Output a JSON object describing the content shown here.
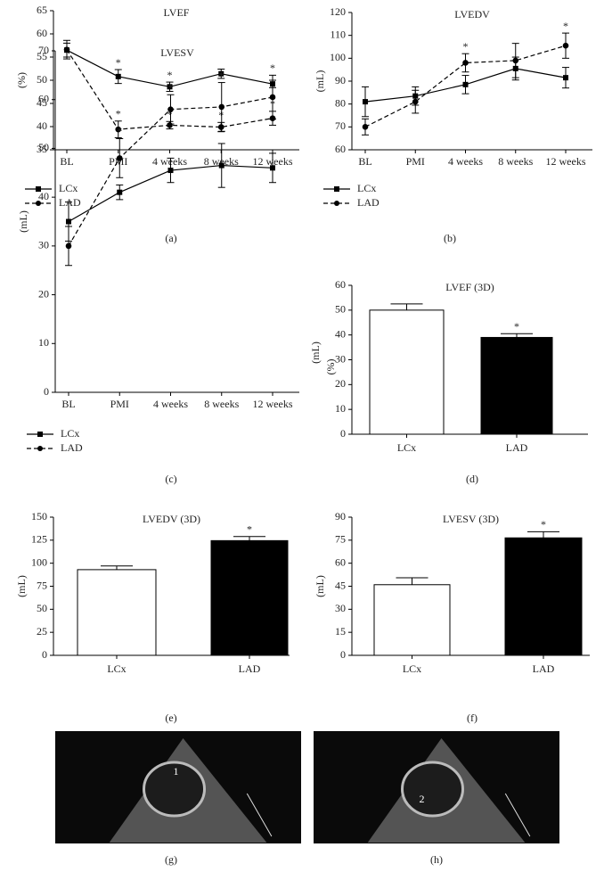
{
  "chart_data": [
    {
      "type": "line",
      "title": "LVEF",
      "panel": "(a)",
      "y_label": "(%)",
      "categories": [
        "BL",
        "PMI",
        "4 weeks",
        "8 weeks",
        "12 weeks"
      ],
      "ylim": [
        35,
        65
      ],
      "yticks": [
        35,
        40,
        45,
        50,
        55,
        60,
        65
      ],
      "series": [
        {
          "name": "LCx",
          "color": "#000000",
          "style": "solid",
          "marker": "square",
          "values": [
            56.5,
            50.8,
            48.6,
            51.4,
            49.2
          ],
          "errors": [
            1.5,
            1.5,
            1,
            1,
            0.8
          ],
          "significance": [
            null,
            "*",
            "*",
            null,
            null
          ]
        },
        {
          "name": "LAD",
          "color": "#000000",
          "style": "dashed",
          "marker": "circle",
          "values": [
            56.6,
            39.4,
            40.3,
            39.9,
            41.8
          ],
          "errors": [
            2,
            1.8,
            0.8,
            1,
            1.5
          ],
          "significance": [
            null,
            "*",
            "*",
            "*",
            "*"
          ]
        }
      ]
    },
    {
      "type": "line",
      "title": "LVEDV",
      "panel": "(b)",
      "y_label": "(mL)",
      "categories": [
        "BL",
        "PMI",
        "4 weeks",
        "8 weeks",
        "12 weeks"
      ],
      "ylim": [
        60,
        120
      ],
      "yticks": [
        60,
        70,
        80,
        90,
        100,
        110,
        120
      ],
      "series": [
        {
          "name": "LCx",
          "color": "#000000",
          "style": "solid",
          "marker": "square",
          "values": [
            81,
            83.5,
            88.5,
            95.5,
            91.5
          ],
          "errors": [
            6.5,
            4,
            4,
            5,
            4.5
          ],
          "significance": [
            null,
            null,
            null,
            null,
            null
          ]
        },
        {
          "name": "LAD",
          "color": "#000000",
          "style": "dashed",
          "marker": "circle",
          "values": [
            70,
            81,
            98,
            99,
            105.5
          ],
          "errors": [
            3.5,
            5,
            4,
            7.5,
            5.5
          ],
          "significance": [
            null,
            null,
            "*",
            null,
            "*"
          ]
        }
      ]
    },
    {
      "type": "line",
      "title": "LVESV",
      "panel": "(c)",
      "y_label": "(mL)",
      "categories": [
        "BL",
        "PMI",
        "4 weeks",
        "8 weeks",
        "12 weeks"
      ],
      "ylim": [
        0,
        70
      ],
      "yticks": [
        0,
        10,
        20,
        30,
        40,
        50,
        60,
        70
      ],
      "series": [
        {
          "name": "LCx",
          "color": "#000000",
          "style": "solid",
          "marker": "square",
          "values": [
            35,
            41,
            45.5,
            46.5,
            46
          ],
          "errors": [
            4,
            1.5,
            2.5,
            4.5,
            3
          ],
          "significance": [
            null,
            null,
            null,
            null,
            null
          ]
        },
        {
          "name": "LAD",
          "color": "#000000",
          "style": "dashed",
          "marker": "circle",
          "values": [
            30,
            48,
            58,
            58.5,
            60.5
          ],
          "errors": [
            4,
            4,
            3,
            5,
            4.5
          ],
          "significance": [
            null,
            "*",
            "*",
            "*",
            "*"
          ]
        }
      ]
    },
    {
      "type": "bar",
      "title": "LVEF (3D)",
      "panel": "(d)",
      "y_label": [
        "(mL)",
        "(%)"
      ],
      "categories": [
        "LCx",
        "LAD"
      ],
      "values": [
        50,
        39
      ],
      "errors": [
        2.5,
        1.5
      ],
      "colors": [
        "#ffffff",
        "#000000"
      ],
      "significance": [
        null,
        "*"
      ],
      "ylim": [
        0,
        60
      ],
      "yticks": [
        0,
        10,
        20,
        30,
        40,
        50,
        60
      ]
    },
    {
      "type": "bar",
      "title": "LVEDV (3D)",
      "panel": "(e)",
      "y_label": "(mL)",
      "categories": [
        "LCx",
        "LAD"
      ],
      "values": [
        93,
        124.5
      ],
      "errors": [
        4,
        4.5
      ],
      "colors": [
        "#ffffff",
        "#000000"
      ],
      "significance": [
        null,
        "*"
      ],
      "ylim": [
        0,
        150
      ],
      "yticks": [
        0,
        25,
        50,
        75,
        100,
        125,
        150
      ]
    },
    {
      "type": "bar",
      "title": "LVESV (3D)",
      "panel": "(f)",
      "y_label": "(mL)",
      "categories": [
        "LCx",
        "LAD"
      ],
      "values": [
        46,
        76.5
      ],
      "errors": [
        4.5,
        4
      ],
      "colors": [
        "#ffffff",
        "#000000"
      ],
      "significance": [
        null,
        "*"
      ],
      "ylim": [
        0,
        90
      ],
      "yticks": [
        0,
        15,
        30,
        45,
        60,
        75,
        90
      ]
    }
  ],
  "images": [
    {
      "panel": "(g)",
      "marker": "1"
    },
    {
      "panel": "(h)",
      "marker": "2"
    }
  ]
}
